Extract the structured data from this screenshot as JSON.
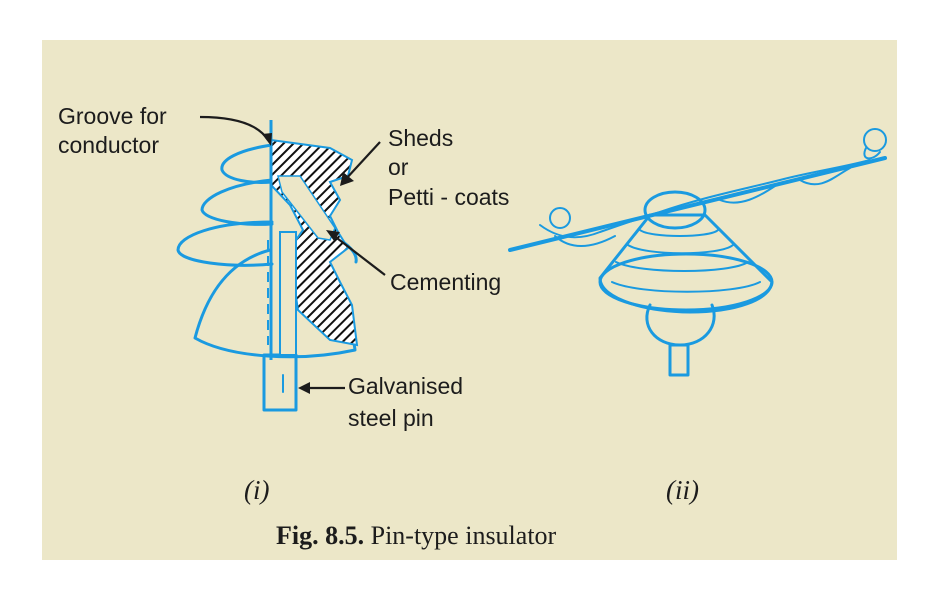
{
  "labels": {
    "groove": [
      "Groove for",
      "conductor"
    ],
    "sheds": [
      "Sheds",
      "or",
      "Petti - coats"
    ],
    "cementing": "Cementing",
    "pin": [
      "Galvanised",
      "steel pin"
    ]
  },
  "subfigures": [
    "(i)",
    "(ii)"
  ],
  "caption": {
    "number": "Fig. 8.5.",
    "text": " Pin-type insulator"
  },
  "colors": {
    "background": "#ece7c8",
    "insulator": "#1a9ae0",
    "text": "#1c1c1c"
  }
}
